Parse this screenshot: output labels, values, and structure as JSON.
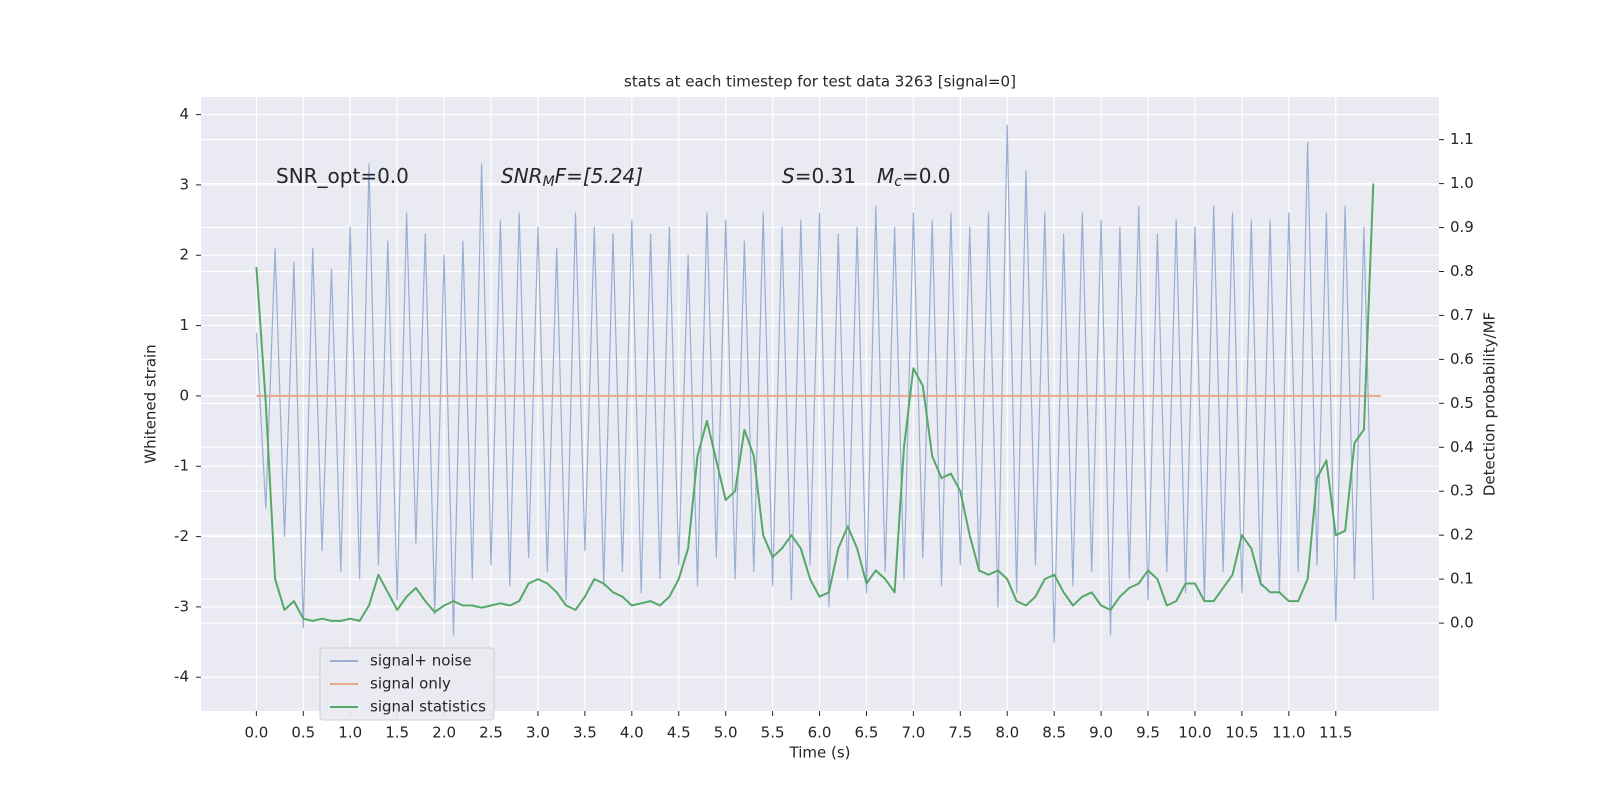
{
  "chart_data": {
    "type": "line",
    "title": "stats at each timestep for test data 3263 [signal=0]",
    "xlabel": "Time (s)",
    "ylabel": "Whitened strain",
    "y2label": "Detection probability/MF",
    "annotations": [
      {
        "text": "SNR_opt=0.0"
      },
      {
        "math": "SNR",
        "sub": "M",
        "text": "F=[5.24]"
      },
      {
        "math": "S",
        "text": "=0.31"
      },
      {
        "math": "M",
        "sub": "c",
        "text": "=0.0"
      }
    ],
    "x": [
      0,
      0.1,
      0.2,
      0.3,
      0.4,
      0.5,
      0.6,
      0.7,
      0.8,
      0.9,
      1,
      1.1,
      1.2,
      1.3,
      1.4,
      1.5,
      1.6,
      1.7,
      1.8,
      1.9,
      2,
      2.1,
      2.2,
      2.3,
      2.4,
      2.5,
      2.6,
      2.7,
      2.8,
      2.9,
      3,
      3.1,
      3.2,
      3.3,
      3.4,
      3.5,
      3.6,
      3.7,
      3.8,
      3.9,
      4,
      4.1,
      4.2,
      4.3,
      4.4,
      4.5,
      4.6,
      4.7,
      4.8,
      4.9,
      5,
      5.1,
      5.2,
      5.3,
      5.4,
      5.5,
      5.6,
      5.7,
      5.8,
      5.9,
      6,
      6.1,
      6.2,
      6.3,
      6.4,
      6.5,
      6.6,
      6.7,
      6.8,
      6.9,
      7,
      7.1,
      7.2,
      7.3,
      7.4,
      7.5,
      7.6,
      7.7,
      7.8,
      7.9,
      8,
      8.1,
      8.2,
      8.3,
      8.4,
      8.5,
      8.6,
      8.7,
      8.8,
      8.9,
      9,
      9.1,
      9.2,
      9.3,
      9.4,
      9.5,
      9.6,
      9.7,
      9.8,
      9.9,
      10,
      10.1,
      10.2,
      10.3,
      10.4,
      10.5,
      10.6,
      10.7,
      10.8,
      10.9,
      11,
      11.1,
      11.2,
      11.3,
      11.4,
      11.5,
      11.6,
      11.7,
      11.8,
      11.9
    ],
    "series": [
      {
        "name": "signal+ noise",
        "color": "#9aaed3",
        "values": [
          0.9,
          -1.6,
          2.1,
          -2.0,
          1.9,
          -3.3,
          2.1,
          -2.2,
          1.8,
          -2.5,
          2.4,
          -2.6,
          3.3,
          -2.4,
          2.2,
          -2.9,
          2.6,
          -2.1,
          2.3,
          -3.1,
          2.0,
          -3.4,
          2.2,
          -2.6,
          3.3,
          -2.4,
          2.5,
          -2.7,
          2.6,
          -2.3,
          2.4,
          -2.5,
          2.1,
          -2.9,
          2.6,
          -2.2,
          2.4,
          -2.7,
          2.3,
          -2.5,
          2.5,
          -2.8,
          2.3,
          -2.6,
          2.4,
          -2.4,
          2.0,
          -2.7,
          2.6,
          -2.3,
          2.5,
          -2.6,
          2.2,
          -2.5,
          2.6,
          -2.7,
          2.4,
          -2.9,
          2.5,
          -2.4,
          2.6,
          -3.0,
          2.3,
          -2.6,
          2.4,
          -2.8,
          2.7,
          -2.5,
          2.4,
          -2.6,
          2.6,
          -2.3,
          2.5,
          -2.7,
          2.6,
          -2.4,
          2.4,
          -2.5,
          2.6,
          -3.0,
          3.85,
          -2.8,
          3.2,
          -2.4,
          2.6,
          -3.5,
          2.3,
          -2.7,
          2.6,
          -2.5,
          2.5,
          -3.4,
          2.4,
          -2.6,
          2.7,
          -2.9,
          2.3,
          -2.5,
          2.5,
          -2.8,
          2.4,
          -2.9,
          2.7,
          -2.5,
          2.6,
          -2.8,
          2.5,
          -2.7,
          2.5,
          -2.8,
          2.6,
          -2.5,
          3.6,
          -2.4,
          2.6,
          -3.2,
          2.7,
          -2.6,
          2.4,
          -2.9
        ]
      },
      {
        "name": "signal only",
        "color": "#e8a88a",
        "x": [
          0,
          11.98
        ],
        "values": [
          0,
          0
        ]
      },
      {
        "name": "signal statistics",
        "color": "#55a868",
        "axis": "y2",
        "values": [
          0.81,
          0.5,
          0.1,
          0.03,
          0.05,
          0.01,
          0.005,
          0.01,
          0.005,
          0.005,
          0.01,
          0.005,
          0.04,
          0.11,
          0.07,
          0.03,
          0.06,
          0.08,
          0.05,
          0.025,
          0.04,
          0.05,
          0.04,
          0.04,
          0.035,
          0.04,
          0.045,
          0.04,
          0.05,
          0.09,
          0.1,
          0.09,
          0.07,
          0.04,
          0.03,
          0.06,
          0.1,
          0.09,
          0.07,
          0.06,
          0.04,
          0.045,
          0.05,
          0.04,
          0.06,
          0.1,
          0.17,
          0.38,
          0.46,
          0.37,
          0.28,
          0.3,
          0.44,
          0.38,
          0.2,
          0.15,
          0.17,
          0.2,
          0.17,
          0.1,
          0.06,
          0.07,
          0.17,
          0.22,
          0.17,
          0.09,
          0.12,
          0.1,
          0.07,
          0.4,
          0.58,
          0.54,
          0.38,
          0.33,
          0.34,
          0.3,
          0.2,
          0.12,
          0.11,
          0.12,
          0.1,
          0.05,
          0.04,
          0.06,
          0.1,
          0.11,
          0.07,
          0.04,
          0.06,
          0.07,
          0.04,
          0.03,
          0.06,
          0.08,
          0.09,
          0.12,
          0.1,
          0.04,
          0.05,
          0.09,
          0.09,
          0.05,
          0.05,
          0.08,
          0.11,
          0.2,
          0.17,
          0.09,
          0.07,
          0.07,
          0.05,
          0.05,
          0.1,
          0.33,
          0.37,
          0.2,
          0.21,
          0.41,
          0.44,
          1.0
        ]
      }
    ],
    "xlim": [
      -0.59,
      12.6
    ],
    "ylim": [
      -4.48,
      4.25
    ],
    "y2lim": [
      -0.2,
      1.197
    ],
    "xticks": [
      {
        "value": 0,
        "label": "0.0"
      },
      0.5,
      {
        "value": 1,
        "label": "1.0"
      },
      1.5,
      {
        "value": 2,
        "label": "2.0"
      },
      2.5,
      {
        "value": 3,
        "label": "3.0"
      },
      3.5,
      {
        "value": 4,
        "label": "4.0"
      },
      4.5,
      {
        "value": 5,
        "label": "5.0"
      },
      5.5,
      {
        "value": 6,
        "label": "6.0"
      },
      6.5,
      {
        "value": 7,
        "label": "7.0"
      },
      7.5,
      {
        "value": 8,
        "label": "8.0"
      },
      8.5,
      {
        "value": 9,
        "label": "9.0"
      },
      9.5,
      {
        "value": 10,
        "label": "10.0"
      },
      10.5,
      {
        "value": 11,
        "label": "11.0"
      },
      11.5
    ],
    "yticks": [
      -4,
      -3,
      -2,
      -1,
      0,
      1,
      2,
      3,
      4
    ],
    "y2ticks": [
      {
        "value": 0,
        "label": "0.0"
      },
      0.1,
      0.2,
      0.3,
      0.4,
      0.5,
      0.6,
      0.7,
      0.8,
      0.9,
      {
        "value": 1,
        "label": "1.0"
      },
      1.1
    ],
    "grid": true,
    "legend": "lower left"
  }
}
